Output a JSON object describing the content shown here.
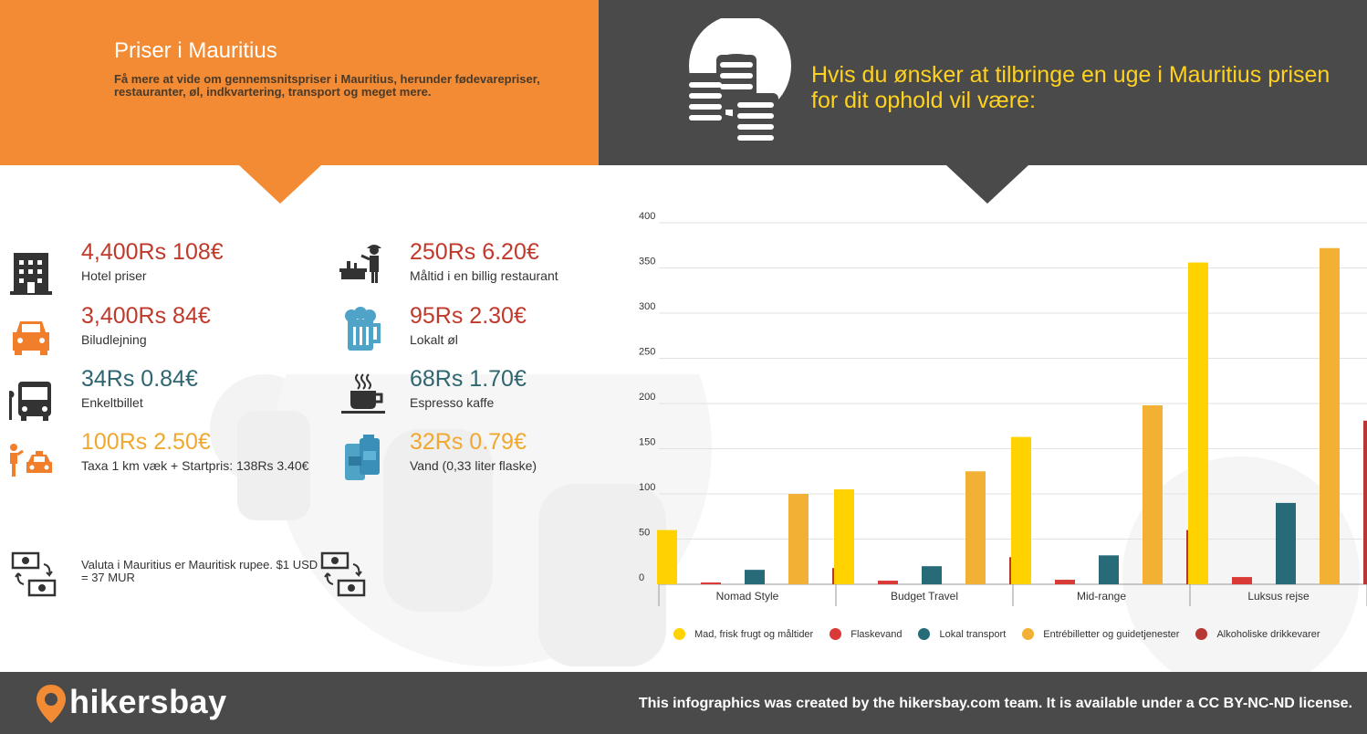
{
  "header": {
    "title": "Priser i Mauritius",
    "subtitle": "Få mere at vide om gennemsnitspriser i Mauritius, herunder fødevarepriser, restauranter, øl, indkvartering, transport og meget mere.",
    "right_title": "Hvis du ønsker at tilbringe en uge i Mauritius prisen for dit ophold vil være:"
  },
  "prices": [
    {
      "price": "4,400Rs 108€",
      "label": "Hotel priser",
      "icon": "hotel-icon",
      "color": "#c0392b"
    },
    {
      "price": "3,400Rs 84€",
      "label": "Biludlejning",
      "icon": "car-icon",
      "color": "#c0392b"
    },
    {
      "price": "34Rs 0.84€",
      "label": "Enkeltbillet",
      "icon": "bus-icon",
      "color": "#2e6670"
    },
    {
      "price": "100Rs 2.50€",
      "label": "Taxa 1 km væk + Startpris: 138Rs 3.40€",
      "icon": "taxi-icon",
      "color": "#f0a830"
    },
    {
      "price": "250Rs 6.20€",
      "label": "Måltid i en billig restaurant",
      "icon": "restaurant-icon",
      "color": "#c0392b"
    },
    {
      "price": "95Rs 2.30€",
      "label": "Lokalt øl",
      "icon": "beer-icon",
      "color": "#c0392b"
    },
    {
      "price": "68Rs 1.70€",
      "label": "Espresso kaffe",
      "icon": "coffee-icon",
      "color": "#2e6670"
    },
    {
      "price": "32Rs 0.79€",
      "label": "Vand (0,33 liter flaske)",
      "icon": "water-icon",
      "color": "#f0a830"
    }
  ],
  "currency_note": "Valuta i Mauritius er Mauritisk rupee. $1 USD = 37 MUR",
  "footer": {
    "brand": "hikersbay",
    "note": "This infographics was created by the hikersbay.com team. It is available under a CC BY-NC-ND license."
  },
  "chart_data": {
    "type": "bar",
    "categories": [
      "Nomad Style",
      "Budget Travel",
      "Mid-range",
      "Luksus rejse"
    ],
    "ylim": [
      0,
      400
    ],
    "yticks": [
      0,
      50,
      100,
      150,
      200,
      250,
      300,
      350,
      400
    ],
    "grid": true,
    "legend_position": "bottom",
    "series": [
      {
        "name": "Mad, frisk frugt og måltider",
        "color": "#ffd200",
        "values": [
          60,
          105,
          163,
          356
        ]
      },
      {
        "name": "Flaskevand",
        "color": "#d93a35",
        "values": [
          2,
          4,
          5,
          8
        ]
      },
      {
        "name": "Lokal transport",
        "color": "#276a78",
        "values": [
          16,
          20,
          32,
          90
        ]
      },
      {
        "name": "Entrébilletter og guidetjenester",
        "color": "#f2b134",
        "values": [
          100,
          125,
          198,
          372
        ]
      },
      {
        "name": "Alkoholiske drikkevarer",
        "color": "#b73732",
        "values": [
          18,
          30,
          60,
          181
        ]
      }
    ]
  }
}
